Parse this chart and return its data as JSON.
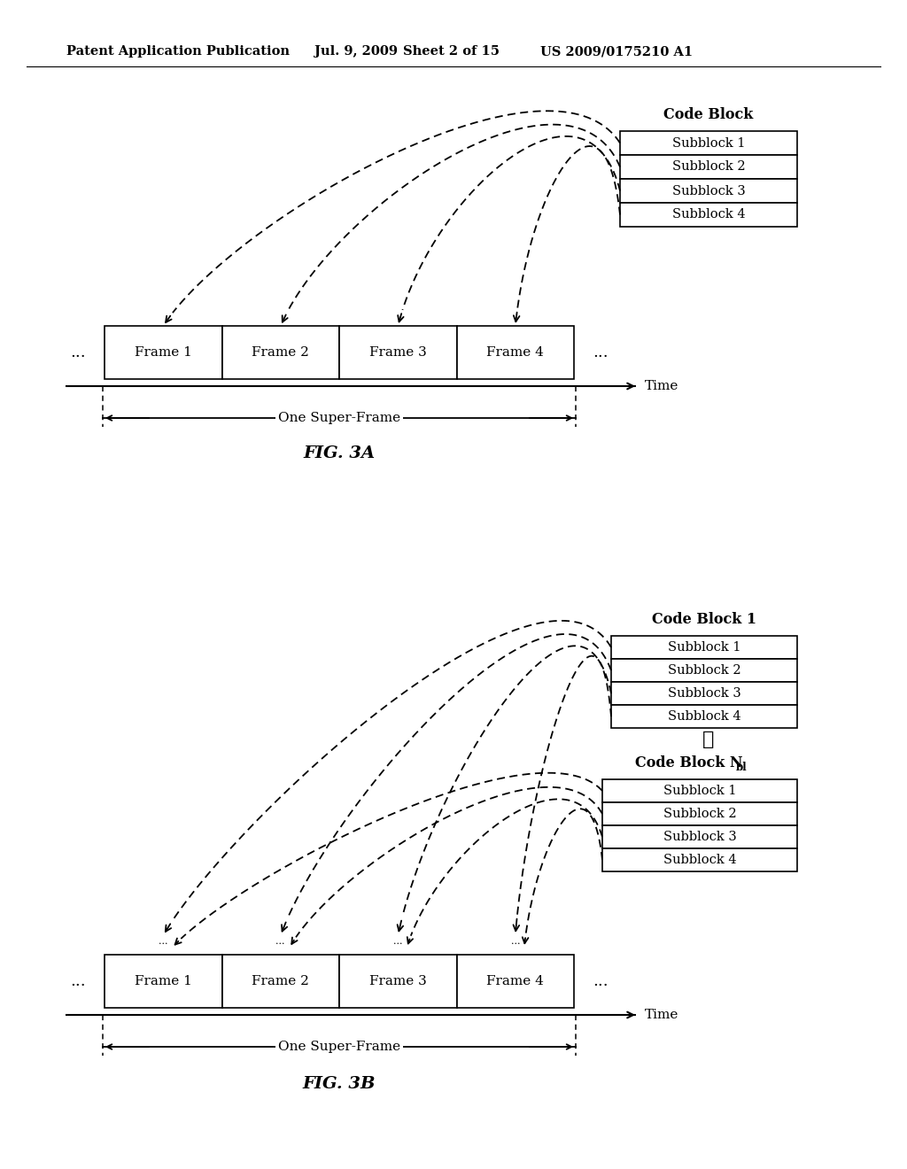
{
  "bg_color": "#ffffff",
  "header_text": "Patent Application Publication",
  "header_date": "Jul. 9, 2009",
  "header_sheet": "Sheet 2 of 15",
  "header_patent": "US 2009/0175210 A1",
  "fig3a_label": "FIG. 3A",
  "fig3b_label": "FIG. 3B",
  "frame_labels": [
    "Frame 1",
    "Frame 2",
    "Frame 3",
    "Frame 4"
  ],
  "subblock_labels": [
    "Subblock 1",
    "Subblock 2",
    "Subblock 3",
    "Subblock 4"
  ],
  "code_block_title_3a": "Code Block",
  "code_block1_title_3b": "Code Block 1",
  "code_block2_title_3b": "Code Block N",
  "code_block2_subscript": "bl",
  "time_label": "Time",
  "superframe_label": "One Super-Frame",
  "dots3": "...",
  "vdots": "⋮"
}
